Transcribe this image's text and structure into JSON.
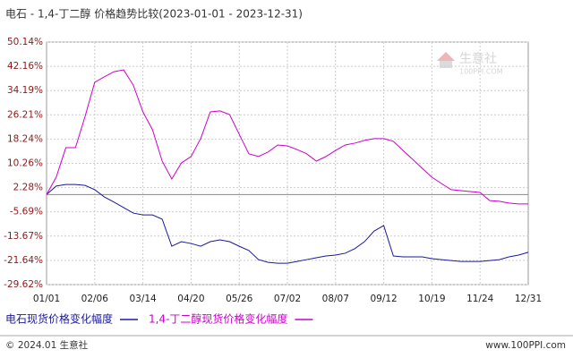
{
  "chart_data": {
    "type": "line",
    "title": "电石 - 1,4-丁二醇 价格趋势比较(2023-01-01 - 2023-12-31)",
    "categories": [
      "01/01",
      null,
      null,
      null,
      null,
      "02/06",
      null,
      null,
      null,
      null,
      "03/14",
      null,
      null,
      null,
      null,
      "04/20",
      null,
      null,
      null,
      null,
      "05/26",
      null,
      null,
      null,
      null,
      "07/02",
      null,
      null,
      null,
      null,
      "08/07",
      null,
      null,
      null,
      null,
      "09/12",
      null,
      null,
      null,
      null,
      "10/19",
      null,
      null,
      null,
      null,
      "11/24",
      null,
      null,
      null,
      null,
      "12/31"
    ],
    "series": [
      {
        "name": "电石现货价格变化幅度",
        "color": "#1a1a99",
        "values": [
          0,
          2.8,
          3.3,
          3.3,
          3.0,
          1.6,
          -0.8,
          -2.5,
          -4.3,
          -6.1,
          -6.7,
          -6.7,
          -8.1,
          -17,
          -15.5,
          -16.1,
          -17,
          -15.5,
          -14.9,
          -15.5,
          -17,
          -18.4,
          -21.4,
          -22.3,
          -22.6,
          -22.6,
          -22,
          -21.4,
          -20.8,
          -20.2,
          -19.9,
          -19.3,
          -17.8,
          -15.5,
          -12,
          -10.2,
          -20.2,
          -20.5,
          -20.5,
          -20.5,
          -21.1,
          -21.4,
          -21.7,
          -22,
          -22,
          -22,
          -21.7,
          -21.4,
          -20.5,
          -19.9,
          -19
        ]
      },
      {
        "name": "1,4-丁二醇现货价格变化幅度",
        "color": "#cc00cc",
        "values": [
          0,
          5.7,
          15.4,
          15.4,
          25.7,
          36.9,
          38.7,
          40.4,
          41,
          36,
          27.2,
          21.3,
          11,
          5.1,
          10.4,
          12.5,
          18.4,
          27.2,
          27.5,
          26.3,
          19.8,
          13.4,
          12.5,
          14,
          16.3,
          16,
          14.8,
          13.4,
          11,
          12.5,
          14.5,
          16.3,
          16.9,
          17.8,
          18.4,
          18.4,
          17.5,
          14.5,
          11.6,
          8.6,
          5.7,
          3.6,
          1.6,
          1.3,
          1,
          0.7,
          -2,
          -2.2,
          -2.8,
          -3.1,
          -3.1
        ]
      }
    ],
    "ylim": [
      -29.62,
      50.14
    ],
    "yticks": [
      {
        "value": 50.14,
        "label": "50.14%"
      },
      {
        "value": 42.16,
        "label": "42.16%"
      },
      {
        "value": 34.19,
        "label": "34.19%"
      },
      {
        "value": 26.21,
        "label": "26.21%"
      },
      {
        "value": 18.24,
        "label": "18.24%"
      },
      {
        "value": 10.26,
        "label": "10.26%"
      },
      {
        "value": 2.28,
        "label": "2.28%"
      },
      {
        "value": -5.69,
        "label": "-5.69%"
      },
      {
        "value": -13.67,
        "label": "-13.67%"
      },
      {
        "value": -21.64,
        "label": "-21.64%"
      },
      {
        "value": -29.62,
        "label": "-29.62%"
      }
    ],
    "grid": true,
    "watermark": "生意社",
    "watermark_url": "100PPI.COM",
    "footer_left": "© 2024.01 生意社",
    "footer_right": "www.100PPI.com"
  }
}
